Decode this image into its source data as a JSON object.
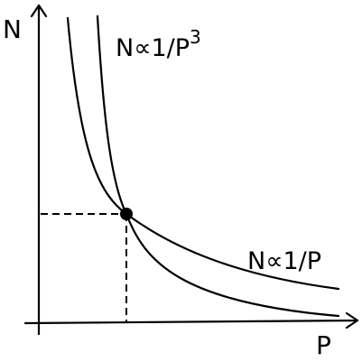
{
  "axes": {
    "y_label": "N",
    "x_label": "P"
  },
  "curves": [
    {
      "label": "N∝1/P",
      "superscript": "3"
    },
    {
      "label": "N∝1/P"
    }
  ]
}
